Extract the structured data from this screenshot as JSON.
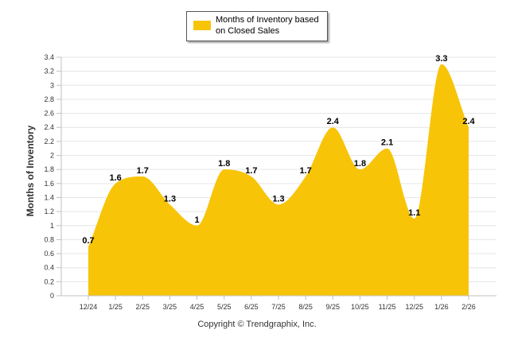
{
  "chart_data": {
    "type": "area",
    "categories": [
      "12/24",
      "1/25",
      "2/25",
      "3/25",
      "4/25",
      "5/25",
      "6/25",
      "7/25",
      "8/25",
      "9/25",
      "10/25",
      "11/25",
      "12/25",
      "1/26",
      "2/26"
    ],
    "series": [
      {
        "name": "Months of Inventory based on Closed Sales",
        "values": [
          0.7,
          1.6,
          1.7,
          1.3,
          1,
          1.8,
          1.7,
          1.3,
          1.7,
          2.4,
          1.8,
          2.1,
          1.1,
          3.3,
          2.4
        ],
        "labels": [
          "0.7",
          "1.6",
          "1.7",
          "1.3",
          "1",
          "1.8",
          "1.7",
          "1.3",
          "1.7",
          "2.4",
          "1.8",
          "2.1",
          "1.1",
          "3.3",
          "2.4"
        ],
        "color": "#F7C408"
      }
    ],
    "ylabel": "Months of Inventory",
    "xlabel": "",
    "ylim": [
      0,
      3.4
    ],
    "yticks": [
      "0",
      "0.2",
      "0.4",
      "0.6",
      "0.8",
      "1",
      "1.2",
      "1.4",
      "1.6",
      "1.8",
      "2",
      "2.2",
      "2.4",
      "2.6",
      "2.8",
      "3",
      "3.2",
      "3.4"
    ],
    "grid": true,
    "legend": "top-center"
  },
  "legend": {
    "label": "Months of Inventory based on Closed Sales"
  },
  "footer": {
    "copyright": "Copyright © Trendgraphix, Inc."
  },
  "colors": {
    "area": "#F7C408",
    "grid": "#E6E6E6",
    "axis": "#C0C0C0"
  }
}
